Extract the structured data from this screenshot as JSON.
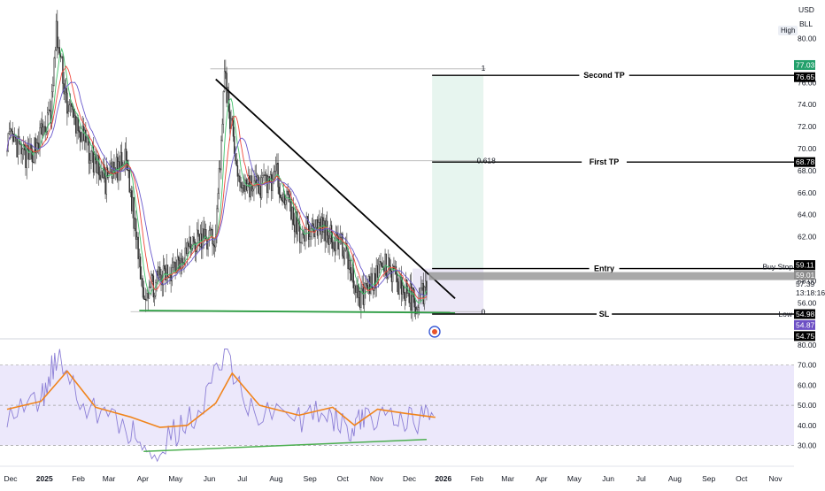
{
  "header": {
    "currency": "USD",
    "symbol": "BLL",
    "high_badge": "High"
  },
  "price_axis": {
    "ticks": [
      "80.00",
      "76.00",
      "74.00",
      "72.00",
      "70.00",
      "68.00",
      "66.00",
      "64.00",
      "62.00",
      "58.00",
      "56.00"
    ],
    "tags": {
      "second_tp_top": "77.03",
      "second_tp": "76.65",
      "first_tp": "68.78",
      "entry": "59.11",
      "buy_stop": "59.01",
      "last_price": "57.39",
      "countdown": "13:18:16",
      "sl": "54.98",
      "low_purple": "54.87",
      "low": "54.75"
    },
    "text_labels": {
      "buy_stop": "Buy Stop",
      "low": "Low"
    }
  },
  "levels": {
    "second_tp": "Second TP",
    "first_tp": "First TP",
    "entry": "Entry",
    "sl": "SL"
  },
  "fib_labels": {
    "one": "1",
    "ratio": "0.618",
    "zero": "0"
  },
  "rsi_axis": {
    "ticks": [
      "80.00",
      "70.00",
      "60.00",
      "50.00",
      "40.00",
      "30.00"
    ]
  },
  "time_axis": {
    "labels": [
      "Dec",
      "2025",
      "Feb",
      "Mar",
      "Apr",
      "May",
      "Jun",
      "Jul",
      "Aug",
      "Sep",
      "Oct",
      "Nov",
      "Dec",
      "2026",
      "Feb",
      "Mar",
      "Apr",
      "May",
      "Jun",
      "Jul",
      "Aug",
      "Sep",
      "Oct",
      "Nov"
    ],
    "bold": [
      "2025",
      "2026"
    ]
  },
  "colors": {
    "candle": "#2b2b2b",
    "ma_fast": "#43c26b",
    "ma_mid": "#f0483c",
    "ma_slow": "#6a5acd",
    "trendline": "#000000",
    "support": "#2e9e44",
    "rsi_line": "#8c7fd6",
    "rsi_ma": "#f0841c",
    "rsi_band": "#ece8fb",
    "target_zone": "#e7f5ef",
    "stop_zone": "#ece8f7",
    "tag_green": "#22a06b",
    "tag_purple": "#6c4fc4"
  },
  "chart_data": [
    {
      "type": "candlestick",
      "title": "",
      "x_label": "",
      "y_label": "",
      "y_range": [
        52.5,
        82.5
      ],
      "x_range": [
        "2024-12",
        "2026-11"
      ],
      "grid": false,
      "close_path": [
        [
          "2024-12-01",
          71.0
        ],
        [
          "2024-12-20",
          69.0
        ],
        [
          "2025-01-10",
          73.0
        ],
        [
          "2025-01-15",
          80.5
        ],
        [
          "2025-01-25",
          74.0
        ],
        [
          "2025-02-10",
          70.5
        ],
        [
          "2025-03-01",
          67.0
        ],
        [
          "2025-03-20",
          69.0
        ],
        [
          "2025-04-05",
          57.0
        ],
        [
          "2025-04-25",
          58.5
        ],
        [
          "2025-05-20",
          61.5
        ],
        [
          "2025-06-10",
          62.0
        ],
        [
          "2025-06-18",
          76.5
        ],
        [
          "2025-07-01",
          67.0
        ],
        [
          "2025-07-20",
          66.5
        ],
        [
          "2025-08-05",
          67.5
        ],
        [
          "2025-08-25",
          62.5
        ],
        [
          "2025-09-15",
          63.0
        ],
        [
          "2025-10-05",
          61.0
        ],
        [
          "2025-10-20",
          56.5
        ],
        [
          "2025-11-10",
          59.5
        ],
        [
          "2025-12-10",
          56.0
        ],
        [
          "2025-12-20",
          57.4
        ]
      ],
      "annotations": {
        "descending_trendline": [
          [
            "2025-06-10",
            76.3
          ],
          [
            "2026-01-15",
            56.4
          ]
        ],
        "support_line": [
          [
            "2025-04-01",
            55.3
          ],
          [
            "2026-01-15",
            55.1
          ]
        ],
        "second_tp": 76.65,
        "first_tp": 68.78,
        "entry": 59.11,
        "buy_stop": 59.01,
        "stop_loss": 54.98
      }
    },
    {
      "type": "line",
      "title": "",
      "x_label": "",
      "y_label": "",
      "y_range": [
        20,
        80
      ],
      "bands": [
        30,
        50,
        70
      ],
      "series": [
        {
          "name": "",
          "x": [
            "2024-12-01",
            "2025-01-01",
            "2025-01-15",
            "2025-02-15",
            "2025-03-20",
            "2025-04-10",
            "2025-05-05",
            "2025-05-25",
            "2025-06-18",
            "2025-07-15",
            "2025-08-25",
            "2025-09-20",
            "2025-10-10",
            "2025-10-25",
            "2025-11-20",
            "2025-12-10",
            "2025-12-28"
          ],
          "values": [
            47,
            52,
            74,
            48,
            40,
            26,
            37,
            47,
            76,
            46,
            43,
            49,
            36,
            44,
            48,
            40,
            52
          ]
        },
        {
          "name": "",
          "x": [
            "2024-12-01",
            "2025-01-01",
            "2025-01-25",
            "2025-02-20",
            "2025-03-25",
            "2025-04-20",
            "2025-05-15",
            "2025-06-10",
            "2025-06-25",
            "2025-07-20",
            "2025-08-25",
            "2025-09-25",
            "2025-10-15",
            "2025-11-05",
            "2025-11-30",
            "2025-12-28"
          ],
          "values": [
            48,
            52,
            67,
            49,
            44,
            39,
            40,
            51,
            66,
            50,
            45,
            49,
            40,
            48,
            46,
            44
          ]
        }
      ],
      "annotations": {
        "support_line": [
          [
            "2025-04-05",
            27.0
          ],
          [
            "2025-12-20",
            33.0
          ]
        ]
      }
    }
  ]
}
